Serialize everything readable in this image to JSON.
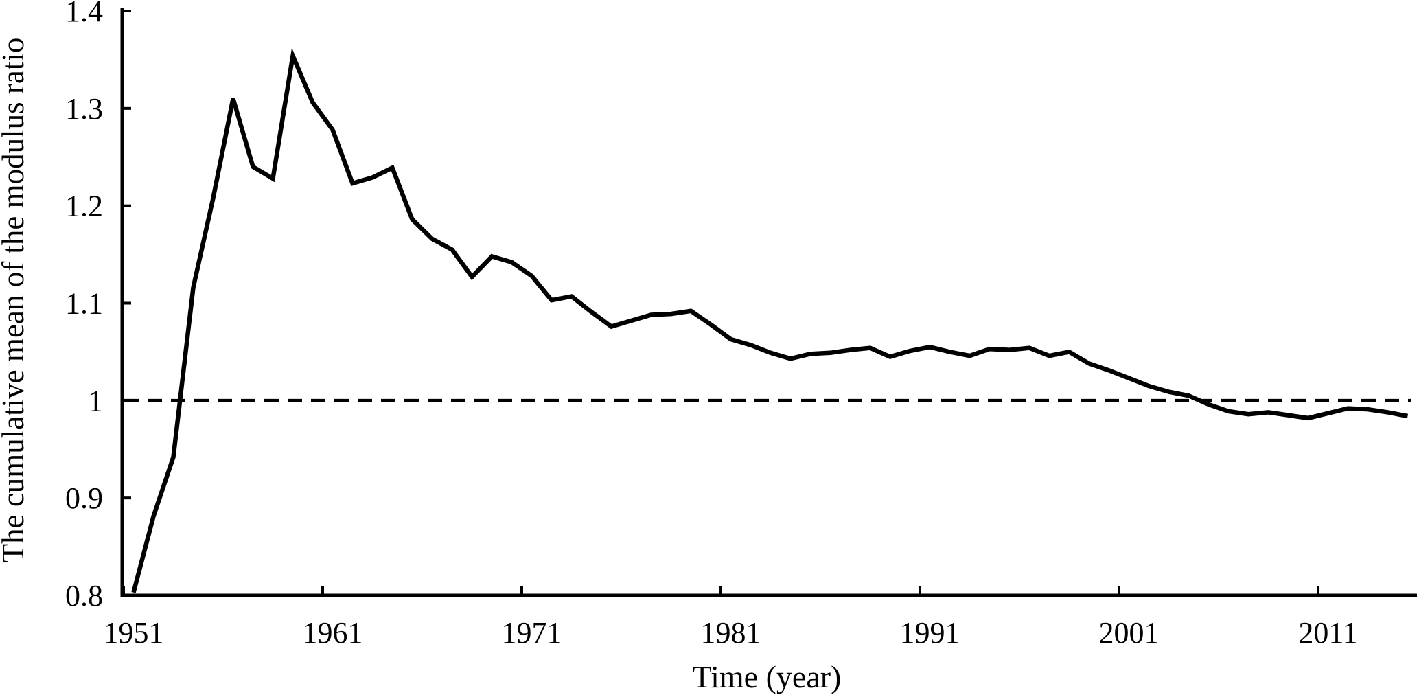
{
  "figure": {
    "background": "#ffffff",
    "ink_color": "#000000"
  },
  "chart_data": {
    "type": "line",
    "title": "",
    "xlabel": "Time (year)",
    "ylabel": "The cumulative mean of the modulus ratio",
    "ylim": [
      0.8,
      1.4
    ],
    "y_tick_step": 0.1,
    "y_tick_labels": [
      "0.8",
      "0.9",
      "1",
      "1.1",
      "1.2",
      "1.3",
      "1.4"
    ],
    "x_tick_labels": [
      "1951",
      "1961",
      "1971",
      "1981",
      "1991",
      "2001",
      "2011"
    ],
    "x_tick_interval_years": 10,
    "grid": "off",
    "legend": "none",
    "line_color": "#000000",
    "reference_line": {
      "value": 1.0,
      "style": "dashed",
      "color": "#000000"
    },
    "series": [
      {
        "name": "Cumulative mean of the modulus ratio",
        "x": [
          1951,
          1952,
          1953,
          1954,
          1955,
          1956,
          1957,
          1958,
          1959,
          1960,
          1961,
          1962,
          1963,
          1964,
          1965,
          1966,
          1967,
          1968,
          1969,
          1970,
          1971,
          1972,
          1973,
          1974,
          1975,
          1976,
          1977,
          1978,
          1979,
          1980,
          1981,
          1982,
          1983,
          1984,
          1985,
          1986,
          1987,
          1988,
          1989,
          1990,
          1991,
          1992,
          1993,
          1994,
          1995,
          1996,
          1997,
          1998,
          1999,
          2000,
          2001,
          2002,
          2003,
          2004,
          2005,
          2006,
          2007,
          2008,
          2009,
          2010,
          2011,
          2012,
          2013,
          2014,
          2015
        ],
        "values": [
          0.803,
          0.881,
          0.942,
          1.116,
          1.208,
          1.31,
          1.24,
          1.228,
          1.354,
          1.306,
          1.278,
          1.223,
          1.229,
          1.239,
          1.186,
          1.166,
          1.155,
          1.127,
          1.148,
          1.142,
          1.128,
          1.103,
          1.107,
          1.091,
          1.076,
          1.082,
          1.088,
          1.089,
          1.092,
          1.078,
          1.063,
          1.057,
          1.049,
          1.043,
          1.048,
          1.049,
          1.052,
          1.054,
          1.045,
          1.051,
          1.055,
          1.05,
          1.046,
          1.053,
          1.052,
          1.054,
          1.046,
          1.05,
          1.038,
          1.031,
          1.023,
          1.015,
          1.009,
          1.005,
          0.996,
          0.989,
          0.986,
          0.988,
          0.985,
          0.982,
          0.987,
          0.992,
          0.991,
          0.988,
          0.984
        ]
      }
    ]
  }
}
